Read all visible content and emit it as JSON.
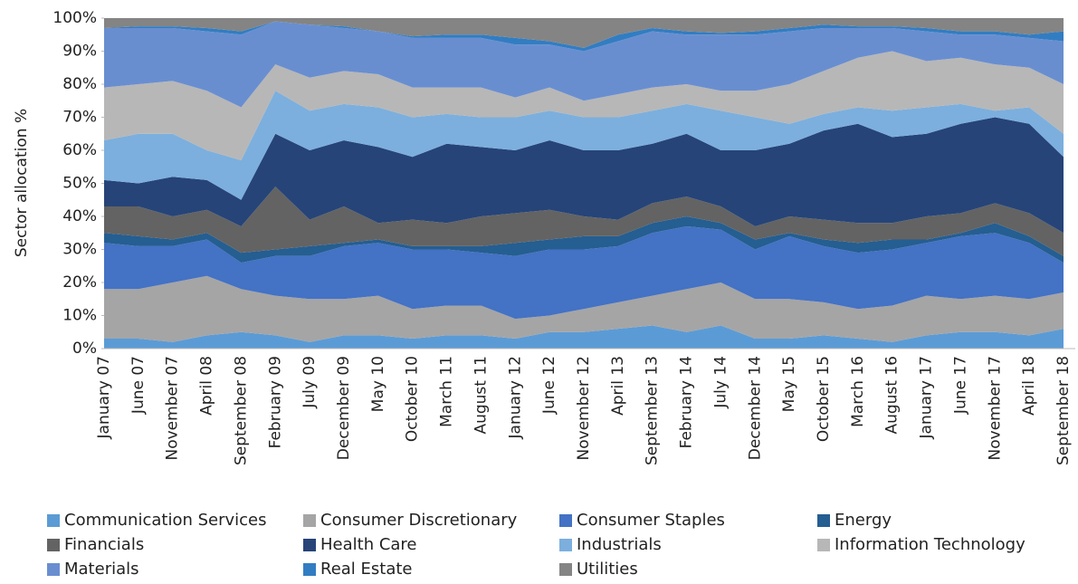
{
  "chart_data": {
    "type": "stacked-area",
    "y_label": "Sector allocation %",
    "categories": [
      "January 07",
      "June 07",
      "November 07",
      "April 08",
      "September 08",
      "February 09",
      "July 09",
      "December 09",
      "May 10",
      "October 10",
      "March 11",
      "August 11",
      "January 12",
      "June 12",
      "November 12",
      "April 13",
      "September 13",
      "February 14",
      "July 14",
      "December 14",
      "May 15",
      "October 15",
      "March 16",
      "August 16",
      "January 17",
      "June 17",
      "November 17",
      "April 18",
      "September 18"
    ],
    "ylim": [
      0,
      100
    ],
    "yticks": [
      {
        "value": 0,
        "label": "0%"
      },
      {
        "value": 10,
        "label": "10%"
      },
      {
        "value": 20,
        "label": "20%"
      },
      {
        "value": 30,
        "label": "30%"
      },
      {
        "value": 40,
        "label": "40%"
      },
      {
        "value": 50,
        "label": "50%"
      },
      {
        "value": 60,
        "label": "60%"
      },
      {
        "value": 70,
        "label": "70%"
      },
      {
        "value": 80,
        "label": "80%"
      },
      {
        "value": 90,
        "label": "90%"
      },
      {
        "value": 100,
        "label": "100%"
      }
    ],
    "grid": false,
    "series": [
      {
        "name": "Communication Services",
        "color": "#5b9bd5",
        "values": [
          3,
          3,
          2,
          4,
          5,
          4,
          2,
          4,
          4,
          3,
          4,
          4,
          3,
          5,
          5,
          6,
          7,
          5,
          7,
          3,
          3,
          4,
          3,
          2,
          4,
          5,
          5,
          4,
          6
        ]
      },
      {
        "name": "Consumer Discretionary",
        "color": "#a5a5a5",
        "values": [
          15,
          15,
          18,
          18,
          13,
          12,
          13,
          11,
          12,
          9,
          9,
          9,
          6,
          5,
          7,
          8,
          9,
          13,
          13,
          12,
          12,
          10,
          9,
          11,
          12,
          10,
          11,
          11,
          11
        ]
      },
      {
        "name": "Consumer Staples",
        "color": "#4472c4",
        "values": [
          14,
          13,
          11,
          11,
          8,
          12,
          13,
          16,
          16,
          18,
          17,
          16,
          19,
          20,
          18,
          17,
          19,
          19,
          16,
          15,
          19,
          17,
          17,
          17,
          16,
          19,
          19,
          17,
          9
        ]
      },
      {
        "name": "Energy",
        "color": "#255e91",
        "values": [
          3,
          3,
          2,
          2,
          3,
          2,
          3,
          1,
          1,
          1,
          1,
          2,
          4,
          3,
          4,
          3,
          3,
          3,
          2,
          3,
          1,
          2,
          3,
          3,
          1,
          1,
          3,
          2,
          2
        ]
      },
      {
        "name": "Financials",
        "color": "#636363",
        "values": [
          8,
          9,
          7,
          7,
          8,
          19,
          8,
          11,
          5,
          8,
          7,
          9,
          9,
          9,
          6,
          5,
          6,
          6,
          5,
          4,
          5,
          6,
          6,
          5,
          7,
          6,
          6,
          7,
          7
        ]
      },
      {
        "name": "Health Care",
        "color": "#264478",
        "values": [
          8,
          7,
          12,
          9,
          8,
          16,
          21,
          20,
          23,
          19,
          24,
          21,
          19,
          21,
          20,
          21,
          18,
          19,
          17,
          23,
          22,
          27,
          30,
          26,
          25,
          27,
          26,
          27,
          23
        ]
      },
      {
        "name": "Industrials",
        "color": "#7cafdd",
        "values": [
          12,
          15,
          13,
          9,
          12,
          13,
          12,
          11,
          12,
          12,
          9,
          9,
          10,
          9,
          10,
          10,
          10,
          9,
          12,
          10,
          6,
          5,
          5,
          8,
          8,
          6,
          2,
          5,
          7
        ]
      },
      {
        "name": "Information Technology",
        "color": "#b7b7b7",
        "values": [
          16,
          15,
          16,
          18,
          16,
          8,
          10,
          10,
          10,
          9,
          8,
          9,
          6,
          7,
          5,
          7,
          7,
          6,
          6,
          8,
          12,
          13,
          15,
          18,
          14,
          14,
          14,
          12,
          15
        ]
      },
      {
        "name": "Materials",
        "color": "#698ed0",
        "values": [
          18,
          17,
          16,
          18,
          22,
          13,
          16,
          13,
          13,
          15,
          15,
          15,
          16,
          13,
          15,
          16,
          17,
          15,
          17,
          17,
          16,
          13,
          9,
          7,
          9,
          7,
          9,
          9,
          13
        ]
      },
      {
        "name": "Real Estate",
        "color": "#327dc2",
        "values": [
          0,
          0.5,
          0.5,
          1,
          1,
          0,
          0,
          0.5,
          0,
          0.5,
          1,
          1,
          2,
          1,
          1,
          2,
          1,
          1,
          0.5,
          1,
          1,
          1,
          0.5,
          0.5,
          1,
          1,
          1,
          1,
          3
        ]
      },
      {
        "name": "Utilities",
        "color": "#848484",
        "values": [
          3,
          2.5,
          2.5,
          3,
          4,
          1,
          2,
          2.5,
          4,
          5.5,
          5,
          5,
          6,
          7,
          9,
          5,
          3,
          4,
          4.5,
          4,
          3,
          2,
          2.5,
          2.5,
          3,
          4,
          4,
          5,
          4
        ]
      }
    ]
  }
}
